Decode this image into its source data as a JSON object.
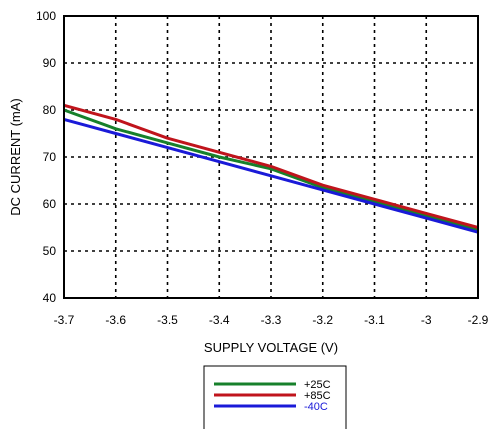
{
  "chart_data": {
    "type": "line",
    "title": "",
    "xlabel": "SUPPLY VOLTAGE (V)",
    "ylabel": "DC CURRENT (mA)",
    "xlim": [
      -3.7,
      -2.9
    ],
    "ylim": [
      40,
      100
    ],
    "xticks": [
      "-3.7",
      "-3.6",
      "-3.5",
      "-3.4",
      "-3.3",
      "-3.2",
      "-3.1",
      "-3",
      "-2.9"
    ],
    "yticks": [
      "40",
      "50",
      "60",
      "70",
      "80",
      "90",
      "100"
    ],
    "grid": true,
    "grid_style": "dashed",
    "legend_position": "bottom-center",
    "series": [
      {
        "name": "+25C",
        "color": "#17802b",
        "x": [
          -3.7,
          -3.6,
          -3.5,
          -3.4,
          -3.3,
          -3.2,
          -3.1,
          -3.0,
          -2.9
        ],
        "y": [
          80,
          76,
          73,
          70,
          67.5,
          63.5,
          60.5,
          57.5,
          54.5
        ]
      },
      {
        "name": "+85C",
        "color": "#c0141c",
        "x": [
          -3.7,
          -3.6,
          -3.5,
          -3.4,
          -3.3,
          -3.2,
          -3.1,
          -3.0,
          -2.9
        ],
        "y": [
          81,
          78,
          74,
          71,
          68,
          64,
          61,
          58,
          55
        ]
      },
      {
        "name": "-40C",
        "color": "#1a1ad8",
        "x": [
          -3.7,
          -3.6,
          -3.5,
          -3.4,
          -3.3,
          -3.2,
          -3.1,
          -3.0,
          -2.9
        ],
        "y": [
          78,
          75,
          72,
          69,
          66,
          63,
          60,
          57,
          54
        ]
      }
    ]
  }
}
